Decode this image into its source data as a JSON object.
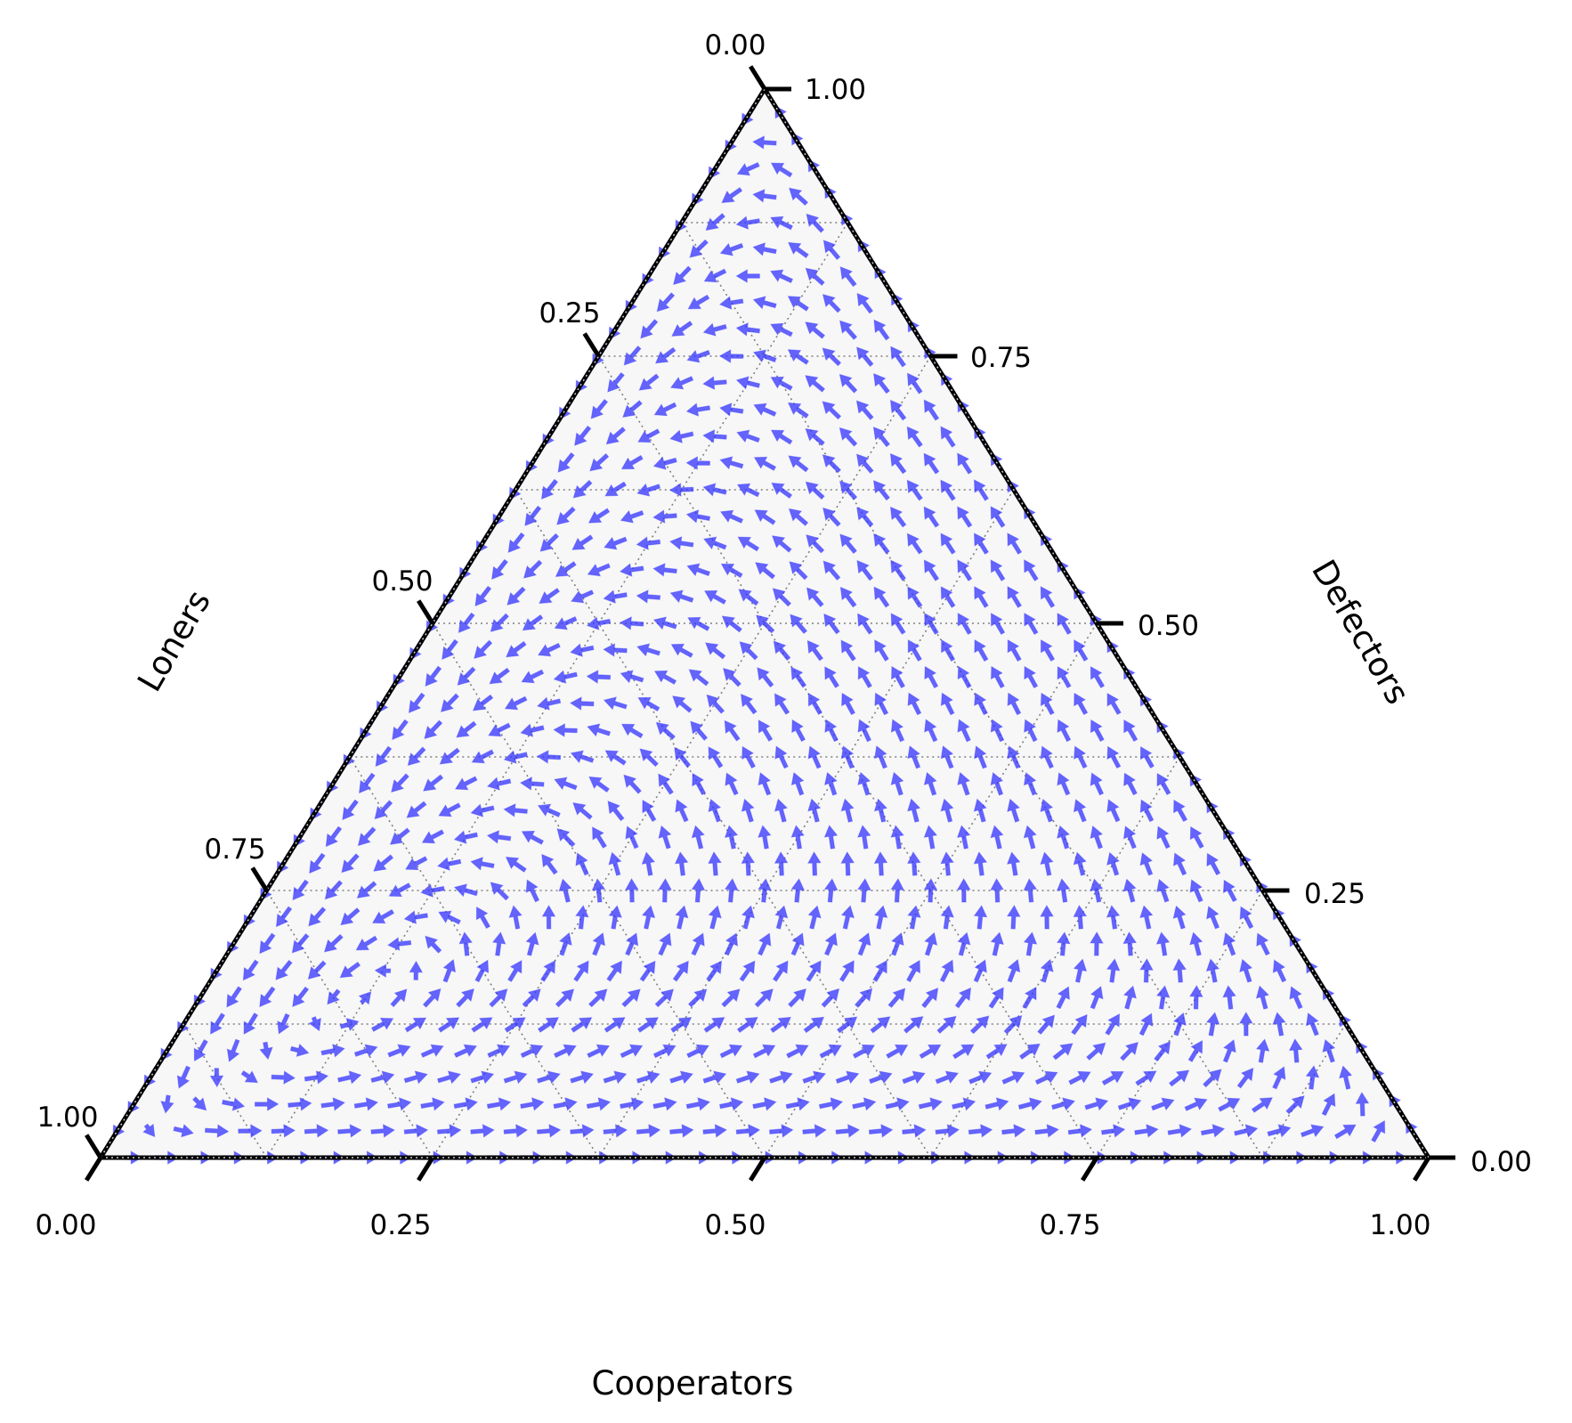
{
  "chart_data": {
    "type": "ternary-quiver",
    "axes": {
      "bottom": {
        "label": "Cooperators",
        "ticks": [
          "0.00",
          "0.25",
          "0.50",
          "0.75",
          "1.00"
        ]
      },
      "right": {
        "label": "Defectors",
        "ticks": [
          "0.00",
          "0.25",
          "0.50",
          "0.75",
          "1.00"
        ]
      },
      "left": {
        "label": "Loners",
        "ticks": [
          "0.00",
          "0.25",
          "0.50",
          "0.75",
          "1.00"
        ]
      }
    },
    "tick_values": [
      0,
      0.25,
      0.5,
      0.75,
      1
    ],
    "range": [
      0,
      1
    ],
    "grid": true,
    "grid_step": 0.125,
    "lattice_divisions": 40,
    "flow_cycle": [
      "Loners",
      "Cooperators",
      "Defectors",
      "Loners"
    ],
    "focus": {
      "cooperators": 0.12,
      "defectors": 0.15,
      "loners": 0.73
    },
    "colors": {
      "arrow": "#3333ff",
      "background": "#f7f7f7",
      "axis": "#000000",
      "grid": "#808080"
    }
  }
}
